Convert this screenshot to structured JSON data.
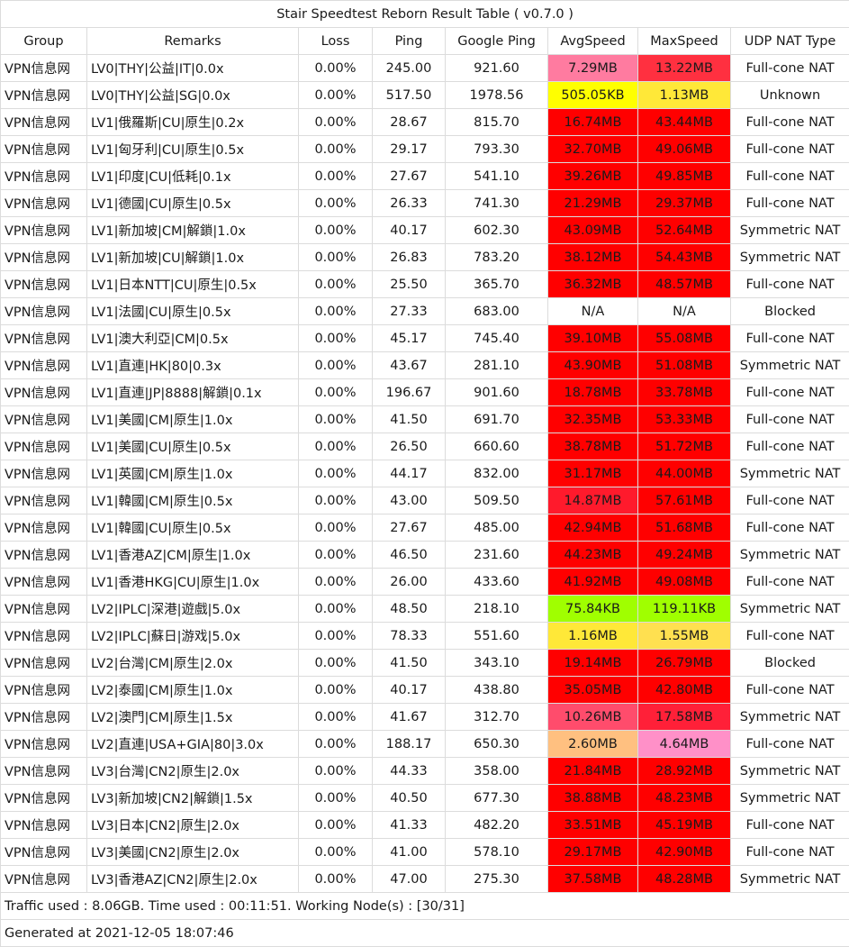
{
  "title": "Stair Speedtest Reborn Result Table ( v0.7.0 )",
  "columns": [
    "Group",
    "Remarks",
    "Loss",
    "Ping",
    "Google Ping",
    "AvgSpeed",
    "MaxSpeed",
    "UDP NAT Type"
  ],
  "rows": [
    {
      "group": "VPN信息网",
      "remarks": "LV0|THY|公益|IT|0.0x",
      "loss": "0.00%",
      "ping": "245.00",
      "google_ping": "921.60",
      "avg": "7.29MB",
      "avg_color": "#ff7ba0",
      "max": "13.22MB",
      "max_color": "#ff3040",
      "nat": "Full-cone NAT"
    },
    {
      "group": "VPN信息网",
      "remarks": "LV0|THY|公益|SG|0.0x",
      "loss": "0.00%",
      "ping": "517.50",
      "google_ping": "1978.56",
      "avg": "505.05KB",
      "avg_color": "#ffff00",
      "max": "1.13MB",
      "max_color": "#ffe838",
      "nat": "Unknown"
    },
    {
      "group": "VPN信息网",
      "remarks": "LV1|俄羅斯|CU|原生|0.2x",
      "loss": "0.00%",
      "ping": "28.67",
      "google_ping": "815.70",
      "avg": "16.74MB",
      "avg_color": "#ff0000",
      "max": "43.44MB",
      "max_color": "#ff0000",
      "nat": "Full-cone NAT"
    },
    {
      "group": "VPN信息网",
      "remarks": "LV1|匈牙利|CU|原生|0.5x",
      "loss": "0.00%",
      "ping": "29.17",
      "google_ping": "793.30",
      "avg": "32.70MB",
      "avg_color": "#ff0000",
      "max": "49.06MB",
      "max_color": "#ff0000",
      "nat": "Full-cone NAT"
    },
    {
      "group": "VPN信息网",
      "remarks": "LV1|印度|CU|低耗|0.1x",
      "loss": "0.00%",
      "ping": "27.67",
      "google_ping": "541.10",
      "avg": "39.26MB",
      "avg_color": "#ff0000",
      "max": "49.85MB",
      "max_color": "#ff0000",
      "nat": "Full-cone NAT"
    },
    {
      "group": "VPN信息网",
      "remarks": "LV1|德國|CU|原生|0.5x",
      "loss": "0.00%",
      "ping": "26.33",
      "google_ping": "741.30",
      "avg": "21.29MB",
      "avg_color": "#ff0000",
      "max": "29.37MB",
      "max_color": "#ff0000",
      "nat": "Full-cone NAT"
    },
    {
      "group": "VPN信息网",
      "remarks": "LV1|新加坡|CM|解鎖|1.0x",
      "loss": "0.00%",
      "ping": "40.17",
      "google_ping": "602.30",
      "avg": "43.09MB",
      "avg_color": "#ff0000",
      "max": "52.64MB",
      "max_color": "#ff0000",
      "nat": "Symmetric NAT"
    },
    {
      "group": "VPN信息网",
      "remarks": "LV1|新加坡|CU|解鎖|1.0x",
      "loss": "0.00%",
      "ping": "26.83",
      "google_ping": "783.20",
      "avg": "38.12MB",
      "avg_color": "#ff0000",
      "max": "54.43MB",
      "max_color": "#ff0000",
      "nat": "Symmetric NAT"
    },
    {
      "group": "VPN信息网",
      "remarks": "LV1|日本NTT|CU|原生|0.5x",
      "loss": "0.00%",
      "ping": "25.50",
      "google_ping": "365.70",
      "avg": "36.32MB",
      "avg_color": "#ff0000",
      "max": "48.57MB",
      "max_color": "#ff0000",
      "nat": "Full-cone NAT"
    },
    {
      "group": "VPN信息网",
      "remarks": "LV1|法國|CU|原生|0.5x",
      "loss": "0.00%",
      "ping": "27.33",
      "google_ping": "683.00",
      "avg": "N/A",
      "avg_color": "#ffffff",
      "max": "N/A",
      "max_color": "#ffffff",
      "nat": "Blocked"
    },
    {
      "group": "VPN信息网",
      "remarks": "LV1|澳大利亞|CM|0.5x",
      "loss": "0.00%",
      "ping": "45.17",
      "google_ping": "745.40",
      "avg": "39.10MB",
      "avg_color": "#ff0000",
      "max": "55.08MB",
      "max_color": "#ff0000",
      "nat": "Full-cone NAT"
    },
    {
      "group": "VPN信息网",
      "remarks": "LV1|直連|HK|80|0.3x",
      "loss": "0.00%",
      "ping": "43.67",
      "google_ping": "281.10",
      "avg": "43.90MB",
      "avg_color": "#ff0000",
      "max": "51.08MB",
      "max_color": "#ff0000",
      "nat": "Symmetric NAT"
    },
    {
      "group": "VPN信息网",
      "remarks": "LV1|直連|JP|8888|解鎖|0.1x",
      "loss": "0.00%",
      "ping": "196.67",
      "google_ping": "901.60",
      "avg": "18.78MB",
      "avg_color": "#ff0000",
      "max": "33.78MB",
      "max_color": "#ff0000",
      "nat": "Full-cone NAT"
    },
    {
      "group": "VPN信息网",
      "remarks": "LV1|美國|CM|原生|1.0x",
      "loss": "0.00%",
      "ping": "41.50",
      "google_ping": "691.70",
      "avg": "32.35MB",
      "avg_color": "#ff0000",
      "max": "53.33MB",
      "max_color": "#ff0000",
      "nat": "Full-cone NAT"
    },
    {
      "group": "VPN信息网",
      "remarks": "LV1|美國|CU|原生|0.5x",
      "loss": "0.00%",
      "ping": "26.50",
      "google_ping": "660.60",
      "avg": "38.78MB",
      "avg_color": "#ff0000",
      "max": "51.72MB",
      "max_color": "#ff0000",
      "nat": "Full-cone NAT"
    },
    {
      "group": "VPN信息网",
      "remarks": "LV1|英國|CM|原生|1.0x",
      "loss": "0.00%",
      "ping": "44.17",
      "google_ping": "832.00",
      "avg": "31.17MB",
      "avg_color": "#ff0000",
      "max": "44.00MB",
      "max_color": "#ff0000",
      "nat": "Symmetric NAT"
    },
    {
      "group": "VPN信息网",
      "remarks": "LV1|韓國|CM|原生|0.5x",
      "loss": "0.00%",
      "ping": "43.00",
      "google_ping": "509.50",
      "avg": "14.87MB",
      "avg_color": "#ff1a2c",
      "max": "57.61MB",
      "max_color": "#ff0000",
      "nat": "Full-cone NAT"
    },
    {
      "group": "VPN信息网",
      "remarks": "LV1|韓國|CU|原生|0.5x",
      "loss": "0.00%",
      "ping": "27.67",
      "google_ping": "485.00",
      "avg": "42.94MB",
      "avg_color": "#ff0000",
      "max": "51.68MB",
      "max_color": "#ff0000",
      "nat": "Full-cone NAT"
    },
    {
      "group": "VPN信息网",
      "remarks": "LV1|香港AZ|CM|原生|1.0x",
      "loss": "0.00%",
      "ping": "46.50",
      "google_ping": "231.60",
      "avg": "44.23MB",
      "avg_color": "#ff0000",
      "max": "49.24MB",
      "max_color": "#ff0000",
      "nat": "Symmetric NAT"
    },
    {
      "group": "VPN信息网",
      "remarks": "LV1|香港HKG|CU|原生|1.0x",
      "loss": "0.00%",
      "ping": "26.00",
      "google_ping": "433.60",
      "avg": "41.92MB",
      "avg_color": "#ff0000",
      "max": "49.08MB",
      "max_color": "#ff0000",
      "nat": "Full-cone NAT"
    },
    {
      "group": "VPN信息网",
      "remarks": "LV2|IPLC|深港|遊戲|5.0x",
      "loss": "0.00%",
      "ping": "48.50",
      "google_ping": "218.10",
      "avg": "75.84KB",
      "avg_color": "#a0ff00",
      "max": "119.11KB",
      "max_color": "#a0ff00",
      "nat": "Symmetric NAT"
    },
    {
      "group": "VPN信息网",
      "remarks": "LV2|IPLC|蘇日|游戏|5.0x",
      "loss": "0.00%",
      "ping": "78.33",
      "google_ping": "551.60",
      "avg": "1.16MB",
      "avg_color": "#ffe838",
      "max": "1.55MB",
      "max_color": "#ffe050",
      "nat": "Full-cone NAT"
    },
    {
      "group": "VPN信息网",
      "remarks": "LV2|台灣|CM|原生|2.0x",
      "loss": "0.00%",
      "ping": "41.50",
      "google_ping": "343.10",
      "avg": "19.14MB",
      "avg_color": "#ff0000",
      "max": "26.79MB",
      "max_color": "#ff0000",
      "nat": "Blocked"
    },
    {
      "group": "VPN信息网",
      "remarks": "LV2|泰國|CM|原生|1.0x",
      "loss": "0.00%",
      "ping": "40.17",
      "google_ping": "438.80",
      "avg": "35.05MB",
      "avg_color": "#ff0000",
      "max": "42.80MB",
      "max_color": "#ff0000",
      "nat": "Full-cone NAT"
    },
    {
      "group": "VPN信息网",
      "remarks": "LV2|澳門|CM|原生|1.5x",
      "loss": "0.00%",
      "ping": "41.67",
      "google_ping": "312.70",
      "avg": "10.26MB",
      "avg_color": "#ff4c6c",
      "max": "17.58MB",
      "max_color": "#ff2038",
      "nat": "Symmetric NAT"
    },
    {
      "group": "VPN信息网",
      "remarks": "LV2|直連|USA+GIA|80|3.0x",
      "loss": "0.00%",
      "ping": "188.17",
      "google_ping": "650.30",
      "avg": "2.60MB",
      "avg_color": "#ffc080",
      "max": "4.64MB",
      "max_color": "#ff90c8",
      "nat": "Full-cone NAT"
    },
    {
      "group": "VPN信息网",
      "remarks": "LV3|台灣|CN2|原生|2.0x",
      "loss": "0.00%",
      "ping": "44.33",
      "google_ping": "358.00",
      "avg": "21.84MB",
      "avg_color": "#ff0000",
      "max": "28.92MB",
      "max_color": "#ff0000",
      "nat": "Symmetric NAT"
    },
    {
      "group": "VPN信息网",
      "remarks": "LV3|新加坡|CN2|解鎖|1.5x",
      "loss": "0.00%",
      "ping": "40.50",
      "google_ping": "677.30",
      "avg": "38.88MB",
      "avg_color": "#ff0000",
      "max": "48.23MB",
      "max_color": "#ff0000",
      "nat": "Symmetric NAT"
    },
    {
      "group": "VPN信息网",
      "remarks": "LV3|日本|CN2|原生|2.0x",
      "loss": "0.00%",
      "ping": "41.33",
      "google_ping": "482.20",
      "avg": "33.51MB",
      "avg_color": "#ff0000",
      "max": "45.19MB",
      "max_color": "#ff0000",
      "nat": "Full-cone NAT"
    },
    {
      "group": "VPN信息网",
      "remarks": "LV3|美國|CN2|原生|2.0x",
      "loss": "0.00%",
      "ping": "41.00",
      "google_ping": "578.10",
      "avg": "29.17MB",
      "avg_color": "#ff0000",
      "max": "42.90MB",
      "max_color": "#ff0000",
      "nat": "Full-cone NAT"
    },
    {
      "group": "VPN信息网",
      "remarks": "LV3|香港AZ|CN2|原生|2.0x",
      "loss": "0.00%",
      "ping": "47.00",
      "google_ping": "275.30",
      "avg": "37.58MB",
      "avg_color": "#ff0000",
      "max": "48.28MB",
      "max_color": "#ff0000",
      "nat": "Symmetric NAT"
    }
  ],
  "footer": {
    "traffic": "Traffic used : 8.06GB. Time used : 00:11:51. Working Node(s) : [30/31]",
    "generated": "Generated at 2021-12-05 18:07:46"
  }
}
